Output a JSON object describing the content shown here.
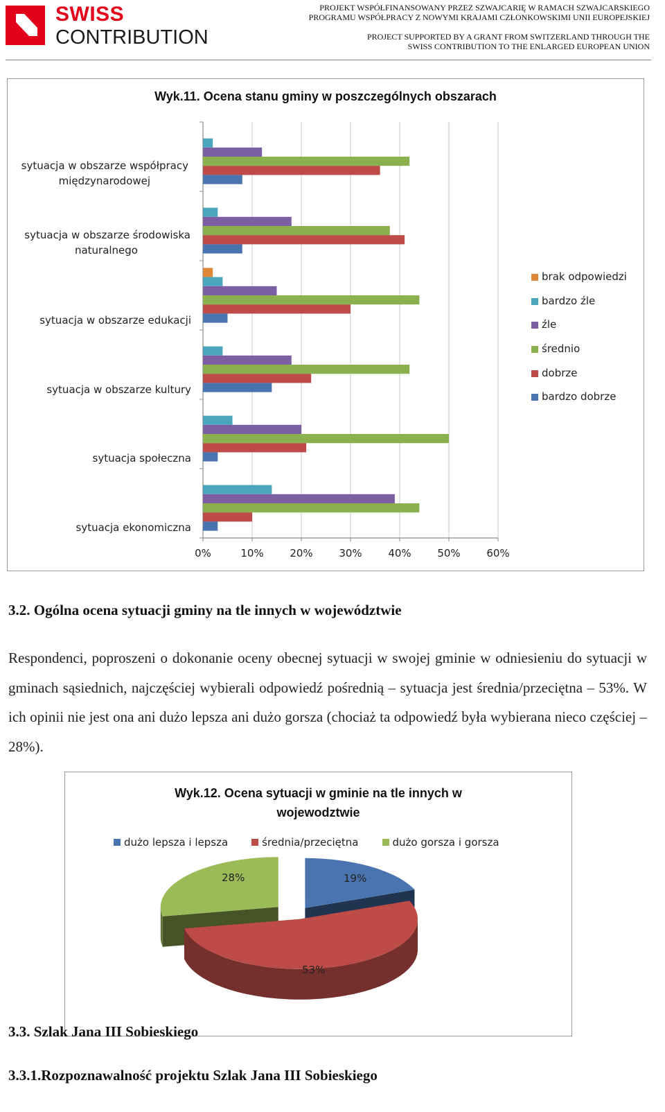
{
  "header": {
    "logo_line1": "SWISS",
    "logo_line2": "CONTRIBUTION",
    "right_line1": "PROJEKT WSPÓŁFINANSOWANY PRZEZ SZWAJCARIĘ W RAMACH SZWAJCARSKIEGO",
    "right_line2": "PROGRAMU WSPÓŁPRACY Z NOWYMI KRAJAMI CZŁONKOWSKIMI UNII EUROPEJSKIEJ",
    "right_line3": "PROJECT SUPPORTED BY A GRANT FROM SWITZERLAND THROUGH THE",
    "right_line4": "SWISS CONTRIBUTION TO THE ENLARGED EUROPEAN UNION"
  },
  "colors": {
    "brand_red": "#e2001a",
    "brak_odpowiedzi": "#e0883a",
    "bardzo_zle": "#4aa6bd",
    "zle": "#7b5ea3",
    "srednio": "#8bb14f",
    "dobrze": "#bd4c48",
    "bardzo_dobrze": "#4a74b0"
  },
  "chart_data": [
    {
      "type": "bar",
      "orientation": "horizontal",
      "title": "Wyk.11. Ocena stanu gminy w poszczególnych obszarach",
      "categories": [
        "sytuacja w obszarze współpracy\nmiędzynarodowej",
        "sytuacja w obszarze środowiska\nnaturalnego",
        "sytuacja w obszarze edukacji",
        "sytuacja w obszarze kultury",
        "sytuacja społeczna",
        "sytuacja ekonomiczna"
      ],
      "series": [
        {
          "name": "brak odpowiedzi",
          "color": "#e0883a",
          "values": [
            0,
            0,
            2,
            0,
            0,
            0
          ]
        },
        {
          "name": "bardzo źle",
          "color": "#4aa6bd",
          "values": [
            2,
            3,
            4,
            4,
            6,
            14
          ]
        },
        {
          "name": "źle",
          "color": "#7b5ea3",
          "values": [
            12,
            18,
            15,
            18,
            20,
            39
          ]
        },
        {
          "name": "średnio",
          "color": "#8bb14f",
          "values": [
            42,
            38,
            44,
            42,
            50,
            44
          ]
        },
        {
          "name": "dobrze",
          "color": "#bd4c48",
          "values": [
            36,
            41,
            30,
            22,
            21,
            10
          ]
        },
        {
          "name": "bardzo dobrze",
          "color": "#4a74b0",
          "values": [
            8,
            8,
            5,
            14,
            3,
            3
          ]
        }
      ],
      "xticks": [
        "0%",
        "10%",
        "20%",
        "30%",
        "40%",
        "50%",
        "60%"
      ],
      "xlim": [
        0,
        60
      ],
      "legend": "right",
      "grid": "vertical"
    },
    {
      "type": "pie",
      "style": "3d-exploded",
      "title": "Wyk.12. Ocena sytuacji w gminie na tle innych w wojewodztwie",
      "slices": [
        {
          "name": "dużo lepsza i lepsza",
          "value": 19,
          "label": "19%",
          "color": "#4a74b0"
        },
        {
          "name": "średnia/przeciętna",
          "value": 53,
          "label": "53%",
          "color": "#bd4c48"
        },
        {
          "name": "dużo gorsza i gorsza",
          "value": 28,
          "label": "28%",
          "color": "#9bbb59"
        }
      ],
      "legend": "top"
    }
  ],
  "chart1_title": "Wyk.11. Ocena stanu gminy w poszczególnych obszarach",
  "chart1_cats": {
    "c0a": "sytuacja w obszarze współpracy",
    "c0b": "międzynarodowej",
    "c1a": "sytuacja w obszarze środowiska",
    "c1b": "naturalnego",
    "c2": "sytuacja w obszarze edukacji",
    "c3": "sytuacja w obszarze kultury",
    "c4": "sytuacja społeczna",
    "c5": "sytuacja ekonomiczna"
  },
  "section_3_2": "3.2. Ogólna ocena sytuacji gminy na tle innych w województwie",
  "paragraph": "Respondenci, poproszeni o dokonanie oceny obecnej sytuacji w swojej gminie w odniesieniu do sytuacji w gminach sąsiednich, najczęściej wybierali odpowiedź pośrednią – sytuacja jest średnia/przeciętna – 53%. W ich opinii nie jest ona ani dużo lepsza ani dużo gorsza (chociaż ta odpowiedź była wybierana nieco częściej – 28%).",
  "chart2_title_l1": "Wyk.12. Ocena sytuacji w gminie na tle innych w",
  "chart2_title_l2": "wojewodztwie",
  "section_3_3": "3.3. Szlak Jana III Sobieskiego",
  "section_3_3_1": "3.3.1.Rozpoznawalność projektu Szlak Jana III Sobieskiego"
}
